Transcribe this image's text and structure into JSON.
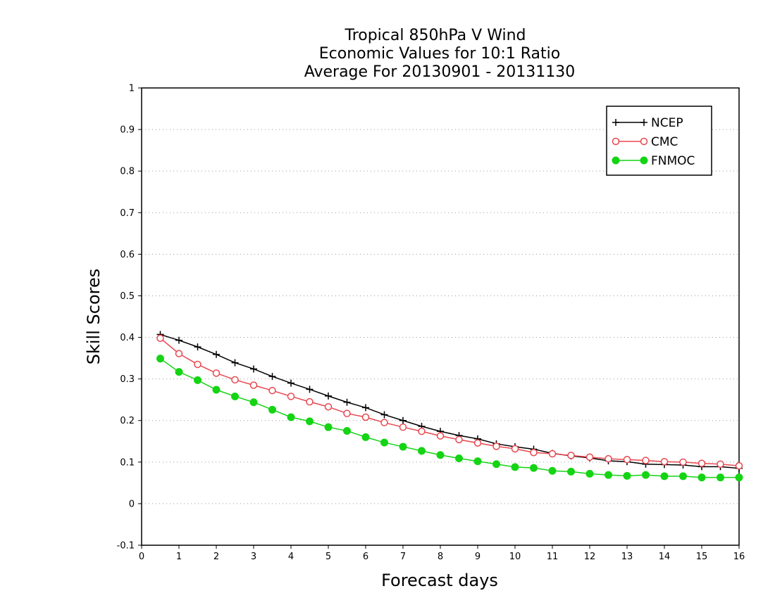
{
  "chart_data": {
    "type": "line",
    "title": [
      "Tropical 850hPa V Wind",
      "Economic Values for 10:1 Ratio",
      "Average For 20130901 - 20131130"
    ],
    "xlabel": "Forecast days",
    "ylabel": "Skill Scores",
    "xlim": [
      0,
      16
    ],
    "ylim": [
      -0.1,
      1
    ],
    "xticks": [
      0,
      1,
      2,
      3,
      4,
      5,
      6,
      7,
      8,
      9,
      10,
      11,
      12,
      13,
      14,
      15,
      16
    ],
    "yticks": [
      -0.1,
      0,
      0.1,
      0.2,
      0.3,
      0.4,
      0.5,
      0.6,
      0.7,
      0.8,
      0.9,
      1
    ],
    "ytick_labels": [
      "-0.1",
      "0",
      "0.1",
      "0.2",
      "0.3",
      "0.4",
      "0.5",
      "0.6",
      "0.7",
      "0.8",
      "0.9",
      "1"
    ],
    "grid": "horizontal dotted",
    "legend_position": "top-right",
    "x": [
      0.5,
      1,
      1.5,
      2,
      2.5,
      3,
      3.5,
      4,
      4.5,
      5,
      5.5,
      6,
      6.5,
      7,
      7.5,
      8,
      8.5,
      9,
      9.5,
      10,
      10.5,
      11,
      11.5,
      12,
      12.5,
      13,
      13.5,
      14,
      14.5,
      15,
      15.5,
      16
    ],
    "series": [
      {
        "name": "NCEP",
        "color": "#000000",
        "marker": "plus",
        "values": [
          0.407,
          0.393,
          0.377,
          0.359,
          0.339,
          0.324,
          0.306,
          0.29,
          0.275,
          0.259,
          0.244,
          0.231,
          0.214,
          0.2,
          0.186,
          0.174,
          0.164,
          0.156,
          0.144,
          0.137,
          0.131,
          0.121,
          0.115,
          0.11,
          0.103,
          0.101,
          0.095,
          0.094,
          0.093,
          0.089,
          0.089,
          0.085
        ]
      },
      {
        "name": "CMC",
        "color": "#e8474f",
        "marker": "open-circle",
        "values": [
          0.398,
          0.361,
          0.335,
          0.314,
          0.298,
          0.285,
          0.272,
          0.258,
          0.245,
          0.233,
          0.217,
          0.208,
          0.195,
          0.184,
          0.174,
          0.163,
          0.154,
          0.146,
          0.138,
          0.132,
          0.123,
          0.12,
          0.116,
          0.112,
          0.108,
          0.106,
          0.104,
          0.101,
          0.1,
          0.097,
          0.095,
          0.091
        ]
      },
      {
        "name": "FNMOC",
        "color": "#14d414",
        "marker": "filled-circle",
        "values": [
          0.349,
          0.317,
          0.297,
          0.274,
          0.258,
          0.244,
          0.226,
          0.208,
          0.198,
          0.184,
          0.175,
          0.16,
          0.147,
          0.137,
          0.127,
          0.117,
          0.109,
          0.102,
          0.095,
          0.088,
          0.086,
          0.079,
          0.077,
          0.072,
          0.069,
          0.067,
          0.069,
          0.066,
          0.066,
          0.063,
          0.063,
          0.063
        ]
      }
    ]
  }
}
